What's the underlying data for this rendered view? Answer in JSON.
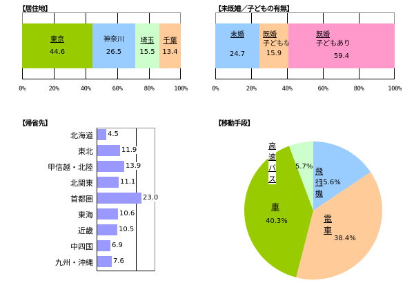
{
  "chart_data": [
    {
      "type": "bar",
      "subtype": "stacked-100-horizontal",
      "title": "【居住地】",
      "categories": [
        "東京",
        "神奈川",
        "埼玉",
        "千葉"
      ],
      "values": [
        44.6,
        26.5,
        15.5,
        13.4
      ],
      "value_labels": [
        "44.6",
        "26.5",
        "15.5",
        "13.4"
      ],
      "colors": [
        "#99cc00",
        "#99ccff",
        "#ccffcc",
        "#ffcc99"
      ],
      "xticks": [
        "0%",
        "20%",
        "40%",
        "60%",
        "80%",
        "100%"
      ],
      "xlim": [
        0,
        100
      ],
      "grid": true
    },
    {
      "type": "bar",
      "subtype": "stacked-100-horizontal",
      "title": "【未既婚／子どもの有無】",
      "categories": [
        "未婚",
        "既婚 子どもなし",
        "既婚 子どもあり"
      ],
      "category_lines": [
        [
          "未婚"
        ],
        [
          "既婚",
          "子どもなし"
        ],
        [
          "既婚",
          "子どもあり"
        ]
      ],
      "values": [
        24.7,
        15.9,
        59.4
      ],
      "value_labels": [
        "24.7",
        "15.9",
        "59.4"
      ],
      "colors": [
        "#99ccff",
        "#ffcc99",
        "#ff99cc"
      ],
      "xticks": [
        "0%",
        "20%",
        "40%",
        "60%",
        "80%",
        "100%"
      ],
      "xlim": [
        0,
        100
      ],
      "grid": true
    },
    {
      "type": "bar",
      "subtype": "horizontal",
      "title": "【帰省先】",
      "categories": [
        "北海道",
        "東北",
        "甲信越・北陸",
        "北関東",
        "首都圏",
        "東海",
        "近畿",
        "中四国",
        "九州・沖縄"
      ],
      "values": [
        4.5,
        11.9,
        13.9,
        11.1,
        23.0,
        10.6,
        10.5,
        6.9,
        7.6
      ],
      "value_labels": [
        "4.5",
        "11.9",
        "13.9",
        "11.1",
        "23.0",
        "10.6",
        "10.5",
        "6.9",
        "7.6"
      ],
      "color": "#9999ff",
      "xlim": [
        0,
        30
      ],
      "grid": true
    },
    {
      "type": "pie",
      "title": "【移動手段】",
      "labels": [
        "飛行機",
        "電車",
        "車",
        "高速バス"
      ],
      "values": [
        15.6,
        38.4,
        40.3,
        5.7
      ],
      "value_labels": [
        "15.6%",
        "38.4%",
        "40.3%",
        "5.7%"
      ],
      "colors": [
        "#99ccff",
        "#ffcc99",
        "#99cc00",
        "#ccffcc"
      ],
      "start_angle": "12 o'clock, clockwise"
    }
  ]
}
